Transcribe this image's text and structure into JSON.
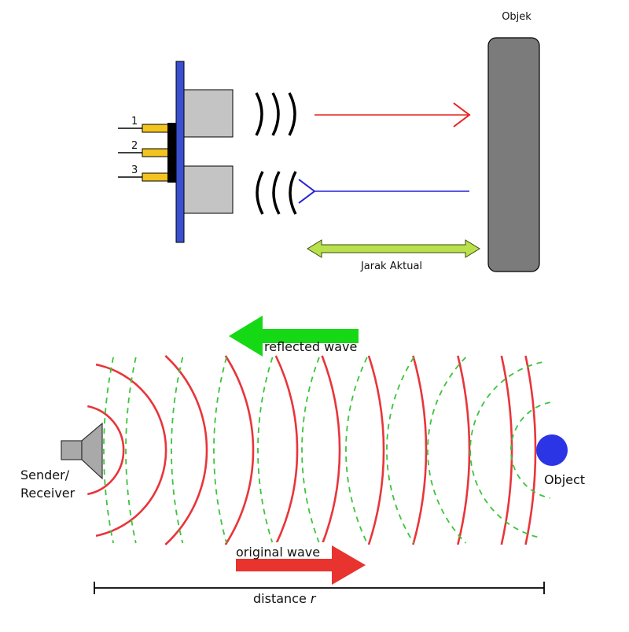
{
  "top": {
    "object_label": "Objek",
    "distance_label": "Jarak Aktual",
    "pins": [
      "1",
      "2",
      "3"
    ]
  },
  "bottom": {
    "sender_label_line1": "Sender/",
    "sender_label_line2": "Receiver",
    "object_label": "Object",
    "reflected_label": "reflected wave",
    "original_label": "original wave",
    "distance_label": "distance",
    "distance_var": "r"
  },
  "colors": {
    "board": "#3a4fd0",
    "pin": "#f3c320",
    "module": "#c4c4c4",
    "object_block": "#7b7b7b",
    "red_arrow": "#e8201f",
    "blue_arrow": "#2622d6",
    "double_arrow": "#b9e14b",
    "wave_red": "#e8353a",
    "wave_green": "#3cc43c",
    "reflected_arrow": "#16d916",
    "original_arrow": "#e8332f",
    "object_dot": "#2b35e6"
  }
}
